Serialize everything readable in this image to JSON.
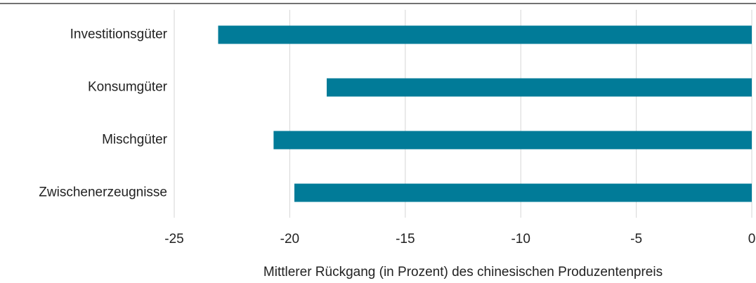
{
  "chart_data": {
    "type": "barh",
    "categories": [
      "Investitionsgüter",
      "Konsumgüter",
      "Mischgüter",
      "Zwischenerzeugnisse"
    ],
    "values": [
      -23.1,
      -18.4,
      -20.7,
      -19.8
    ],
    "color": "#017b98",
    "xlim": [
      -25,
      0
    ],
    "xticks": [
      -25,
      -20,
      -15,
      -10,
      -5,
      0
    ],
    "xlabel": "Mittlerer Rückgang (in Prozent) des chinesischen Produzentenpreis",
    "grid": true
  }
}
